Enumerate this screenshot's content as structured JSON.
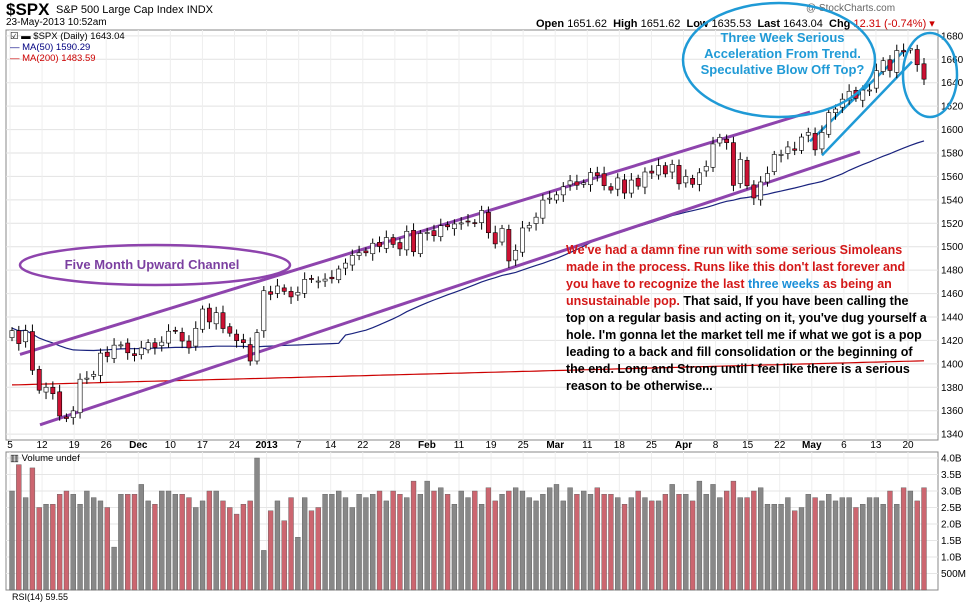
{
  "header": {
    "symbol": "$SPX",
    "name": "S&P 500 Large Cap Index",
    "exchange": "INDX",
    "date": "23-May-2013 10:52am",
    "open_label": "Open",
    "open": "1651.62",
    "high_label": "High",
    "high": "1651.62",
    "low_label": "Low",
    "low": "1635.53",
    "last_label": "Last",
    "last": "1643.04",
    "chg_label": "Chg",
    "chg": "12.31 (-0.74%)",
    "brand": "@ StockCharts.com"
  },
  "legend": {
    "price": "$SPX (Daily) 1643.04",
    "ma50": "MA(50) 1590.29",
    "ma200": "MA(200) 1483.59",
    "volume": "Volume undef"
  },
  "annotations": {
    "channel": "Five Month Upward Channel",
    "acceleration": "Three Week Serious Acceleration From Trend. Speculative Blow Off Top?",
    "body_red": "We've had a damn fine run with some serious Simoleans made in the process. Runs like this don't last forever and you have to recognize the last",
    "body_blue": "three weeks",
    "body_red2": " as being an unsustainable pop.",
    "body_black": " That said, If you have been calling the top on a regular basis and acting on it, you've dug yourself a hole. I'm gonna let the market tell me if what we got is a pop leading to a back and fill consolidation or the beginning of the end. Long and Strong until I feel like there is a serious reason to be otherwise...",
    "bottom_cut": "RSI(14) 59.55"
  },
  "colors": {
    "up_candle": "#ffffff",
    "down_candle": "#cc1133",
    "ma50": "#1a237e",
    "ma200": "#cc0000",
    "channel": "#8e44ad",
    "callout": "#1f9ad6",
    "volume_up": "#888888",
    "volume_down": "#cc6670"
  },
  "chart_data": [
    {
      "type": "candlestick",
      "title": "$SPX (Daily)",
      "ylim": [
        1335,
        1685
      ],
      "y_ticks": [
        1340,
        1360,
        1380,
        1400,
        1420,
        1440,
        1460,
        1480,
        1500,
        1520,
        1540,
        1560,
        1580,
        1600,
        1620,
        1640,
        1660,
        1680
      ],
      "x_tick_labels": [
        "5",
        "12",
        "19",
        "26",
        "Dec",
        "10",
        "17",
        "24",
        "2013",
        "7",
        "14",
        "22",
        "28",
        "Feb",
        "11",
        "19",
        "25",
        "Mar",
        "11",
        "18",
        "25",
        "Apr",
        "8",
        "15",
        "22",
        "May",
        "6",
        "13",
        "20"
      ],
      "grid": true,
      "series": [
        {
          "name": "$SPX (Daily)",
          "close": [
            1428.39,
            1417.26,
            1428.39,
            1394.53,
            1377.51,
            1380.03,
            1374.53,
            1355.49,
            1353.33,
            1359.88,
            1386.89,
            1387.81,
            1391.03,
            1409.15,
            1406.29,
            1415.95,
            1416.18,
            1409.46,
            1407.05,
            1413.58,
            1418.07,
            1413.94,
            1418.55,
            1427.84,
            1428.48,
            1419.45,
            1413.58,
            1430.36,
            1446.79,
            1435.81,
            1443.69,
            1430.15,
            1426.19,
            1419.83,
            1418.1,
            1402.43,
            1426.66,
            1462.42,
            1459.37,
            1466.47,
            1461.89,
            1457.15,
            1461.02,
            1472.12,
            1472.05,
            1470.68,
            1472.34,
            1472.63,
            1480.94,
            1485.98,
            1492.56,
            1494.81,
            1494.82,
            1502.96,
            1500.18,
            1507.84,
            1501.96,
            1498.11,
            1513.17,
            1495.71,
            1511.29,
            1512.12,
            1509.39,
            1517.93,
            1517.01,
            1519.43,
            1520.33,
            1521.38,
            1519.79,
            1530.94,
            1511.95,
            1502.42,
            1515.6,
            1487.85,
            1496.94,
            1515.99,
            1518.2,
            1525.2,
            1539.79,
            1541.46,
            1544.26,
            1551.18,
            1556.22,
            1552.48,
            1554.52,
            1563.23,
            1560.7,
            1552.1,
            1548.34,
            1558.71,
            1545.8,
            1556.89,
            1551.69,
            1563.77,
            1562.85,
            1569.19,
            1562.17,
            1570.25,
            1553.69,
            1559.98,
            1553.28,
            1563.07,
            1568.61,
            1587.73,
            1593.37,
            1588.85,
            1552.36,
            1574.57,
            1552.01,
            1541.61,
            1555.25,
            1562.5,
            1578.78,
            1578.79,
            1585.16,
            1582.24,
            1593.61,
            1597.57,
            1582.7,
            1597.59,
            1614.42,
            1617.5,
            1625.96,
            1632.69,
            1626.67,
            1633.7,
            1633.77,
            1650.34,
            1658.78,
            1650.47,
            1667.47,
            1666.29,
            1669.16,
            1655.35,
            1643.04
          ]
        },
        {
          "name": "MA(50)",
          "last": 1590.29
        },
        {
          "name": "MA(200)",
          "last": 1483.59
        }
      ]
    },
    {
      "type": "bar",
      "title": "Volume undef",
      "ylim": [
        0,
        4.0
      ],
      "y_tick_labels": [
        "500M",
        "1.0B",
        "1.5B",
        "2.0B",
        "2.5B",
        "3.0B",
        "3.5B",
        "4.0B"
      ],
      "series": [
        {
          "name": "Volume",
          "values": [
            3.0,
            3.8,
            2.8,
            3.7,
            2.5,
            2.6,
            2.6,
            2.9,
            3.0,
            2.9,
            2.6,
            3.0,
            2.8,
            2.7,
            2.5,
            1.3,
            2.9,
            2.9,
            2.9,
            3.2,
            2.7,
            2.6,
            3.0,
            3.0,
            2.9,
            2.9,
            2.8,
            2.5,
            2.7,
            3.0,
            3.0,
            2.7,
            2.5,
            2.3,
            2.6,
            2.7,
            4.0,
            1.2,
            2.4,
            2.7,
            2.1,
            2.8,
            1.6,
            2.8,
            2.4,
            2.5,
            2.9,
            2.9,
            3.0,
            2.8,
            2.5,
            2.9,
            2.8,
            2.9,
            3.0,
            2.7,
            3.0,
            2.9,
            2.8,
            3.3,
            2.9,
            3.3,
            3.0,
            3.1,
            2.9,
            2.6,
            3.0,
            2.8,
            3.0,
            2.6,
            3.1,
            2.7,
            2.9,
            3.0,
            3.1,
            3.0,
            2.8,
            2.7,
            2.9,
            3.1,
            3.2,
            2.7,
            3.1,
            2.9,
            3.0,
            2.9,
            3.1,
            2.9,
            2.9,
            2.8,
            2.6,
            2.8,
            3.0,
            2.8,
            2.7,
            2.7,
            2.9,
            3.2,
            2.9,
            2.9,
            2.7,
            3.3,
            2.9,
            3.2,
            2.8,
            3.0,
            3.3,
            2.8,
            2.8,
            3.0,
            3.1,
            2.6,
            2.6,
            2.6,
            2.8,
            2.4,
            2.5,
            2.9,
            2.8,
            2.7,
            2.9,
            2.7,
            2.8,
            2.8,
            2.5,
            2.6,
            2.8,
            2.8,
            2.6,
            3.0,
            2.6,
            3.1,
            3.0,
            2.7,
            3.1
          ]
        }
      ]
    }
  ]
}
